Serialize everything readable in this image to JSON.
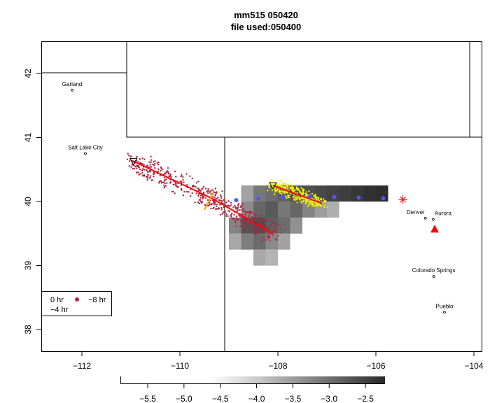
{
  "chart_data": {
    "type": "scatter",
    "title": "mm515 050420",
    "subtitle": "file used:050400",
    "xlim": [
      -112.8,
      -103.9
    ],
    "ylim": [
      37.65,
      42.5
    ],
    "x_ticks": [
      -112,
      -110,
      -108,
      -106,
      -104
    ],
    "x_tick_labels": [
      "−112",
      "−110",
      "−108",
      "−106",
      "−104"
    ],
    "y_ticks": [
      38,
      39,
      40,
      41,
      42
    ],
    "y_tick_labels": [
      "38",
      "39",
      "40",
      "41",
      "42"
    ],
    "cities": [
      {
        "name": "Garland",
        "lon": -112.2,
        "lat": 41.74
      },
      {
        "name": "Salt Lake City",
        "lon": -111.93,
        "lat": 40.75
      },
      {
        "name": "Denver",
        "lon": -104.99,
        "lat": 39.74
      },
      {
        "name": "Aurora",
        "lon": -104.83,
        "lat": 39.72
      },
      {
        "name": "Colorado Springs",
        "lon": -104.82,
        "lat": 38.83
      },
      {
        "name": "Pueblo",
        "lon": -104.6,
        "lat": 38.27
      }
    ],
    "trajectory_minus8": [
      [
        -110.95,
        40.63
      ],
      [
        -109.35,
        40.05
      ],
      [
        -108.1,
        39.5
      ]
    ],
    "trajectory_minus4": [
      [
        -108.1,
        40.25
      ],
      [
        -107.1,
        39.97
      ]
    ],
    "blue_points": [
      [
        -108.85,
        40.02
      ],
      [
        -108.4,
        40.05
      ],
      [
        -107.9,
        40.07
      ],
      [
        -107.35,
        40.08
      ],
      [
        -106.85,
        40.07
      ],
      [
        -106.35,
        40.06
      ],
      [
        -105.85,
        40.05
      ]
    ],
    "source_marker": {
      "lon": -105.45,
      "lat": 40.03
    },
    "receptor_marker": {
      "lon": -104.8,
      "lat": 39.57
    },
    "legend": {
      "items": [
        "0 hr",
        "−4 hr",
        "−8 hr"
      ],
      "placement": "bottom-left"
    },
    "colorbar": {
      "range": [
        -5.87,
        -2.25
      ],
      "ticks": [
        -5.5,
        -5.0,
        -4.5,
        -4.0,
        -3.5,
        -3.0,
        -2.5
      ],
      "tick_labels": [
        "−5.5",
        "−5.0",
        "−4.5",
        "−4.0",
        "−3.5",
        "−3.0",
        "−2.5"
      ]
    },
    "heatmap_cells": [
      [
        -108.75,
        40.0,
        -4.3
      ],
      [
        -108.5,
        40.0,
        -3.6
      ],
      [
        -108.25,
        40.0,
        -3.4
      ],
      [
        -108.0,
        40.0,
        -3.2
      ],
      [
        -107.75,
        40.0,
        -3.0
      ],
      [
        -107.5,
        40.0,
        -2.9
      ],
      [
        -107.25,
        40.0,
        -2.8
      ],
      [
        -107.0,
        40.0,
        -2.7
      ],
      [
        -106.75,
        40.0,
        -2.6
      ],
      [
        -106.5,
        40.0,
        -2.5
      ],
      [
        -106.25,
        40.0,
        -2.4
      ],
      [
        -106.0,
        40.0,
        -2.35
      ],
      [
        -108.75,
        39.75,
        -3.9
      ],
      [
        -108.5,
        39.75,
        -3.3
      ],
      [
        -108.25,
        39.75,
        -3.1
      ],
      [
        -108.0,
        39.75,
        -3.6
      ],
      [
        -107.75,
        39.75,
        -3.3
      ],
      [
        -107.5,
        39.75,
        -3.8
      ],
      [
        -107.25,
        39.75,
        -4.2
      ],
      [
        -107.0,
        39.75,
        -4.5
      ],
      [
        -109.0,
        39.5,
        -3.8
      ],
      [
        -108.75,
        39.5,
        -3.0
      ],
      [
        -108.5,
        39.5,
        -2.9
      ],
      [
        -108.25,
        39.5,
        -3.2
      ],
      [
        -108.0,
        39.5,
        -3.4
      ],
      [
        -107.75,
        39.5,
        -4.0
      ],
      [
        -109.0,
        39.25,
        -4.4
      ],
      [
        -108.75,
        39.25,
        -3.7
      ],
      [
        -108.5,
        39.25,
        -3.4
      ],
      [
        -108.25,
        39.25,
        -3.9
      ],
      [
        -108.0,
        39.25,
        -4.3
      ],
      [
        -108.5,
        39.0,
        -4.4
      ],
      [
        -108.25,
        39.0,
        -4.6
      ]
    ]
  }
}
